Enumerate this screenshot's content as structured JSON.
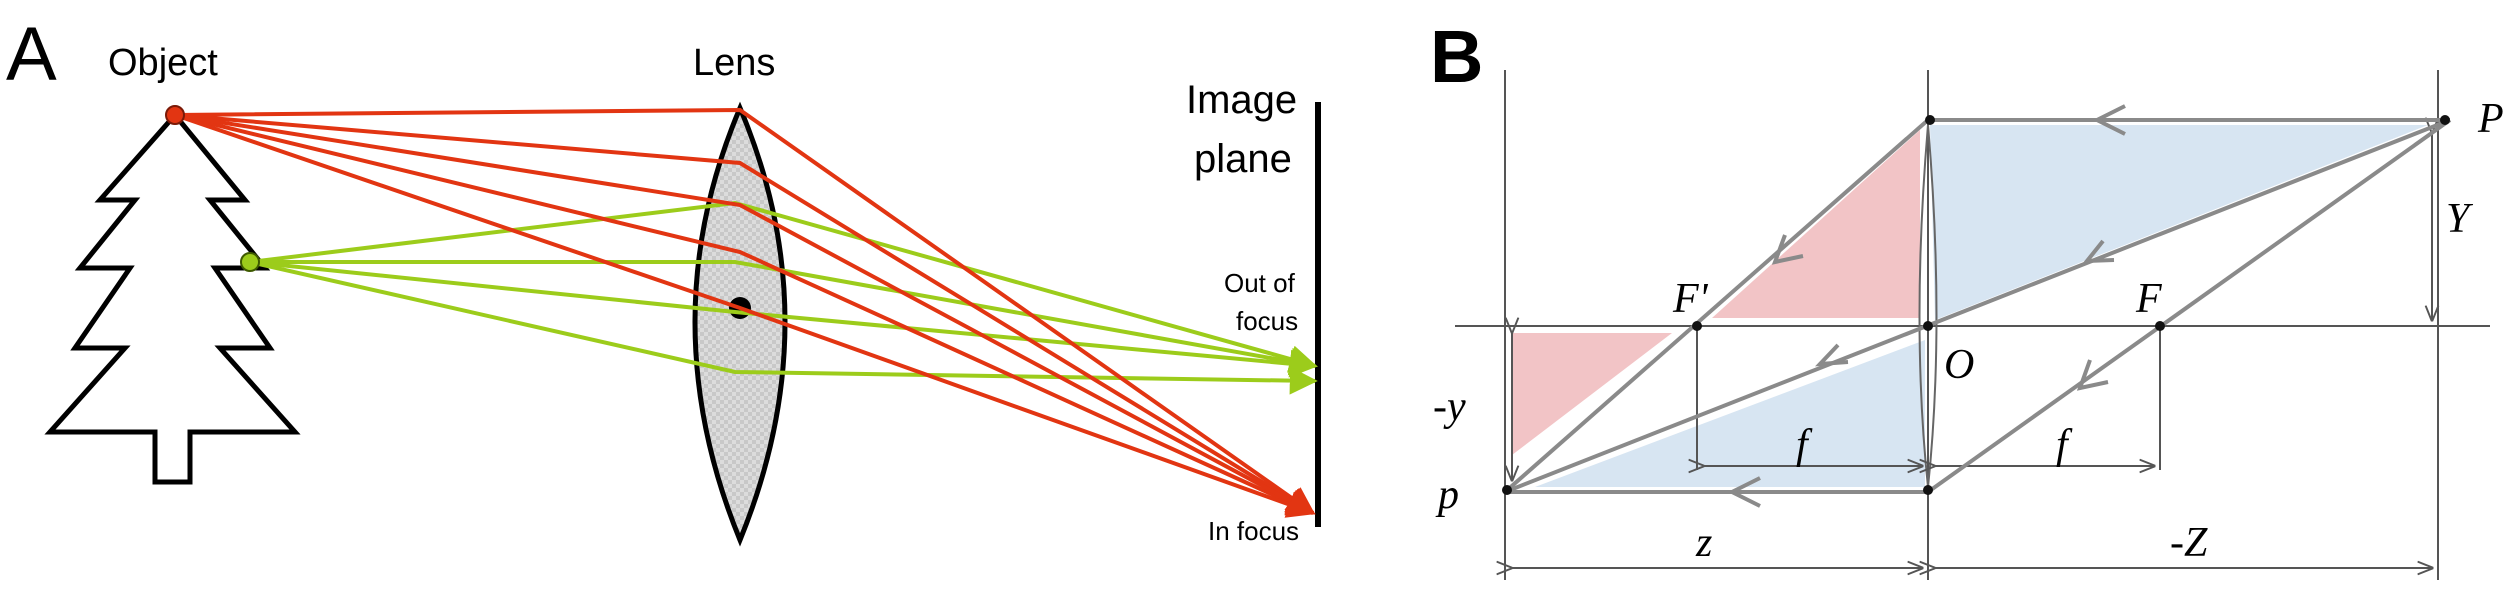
{
  "panel_a": {
    "panel_label": "A",
    "object_label": "Object",
    "lens_label": "Lens",
    "image_plane_label": [
      "Image",
      "plane"
    ],
    "out_of_focus_label": [
      "Out of",
      "focus"
    ],
    "in_focus_label": "In focus",
    "colors": {
      "in_focus_rays": "#e23512",
      "out_of_focus_rays": "#9ccc1b",
      "lens_fill": "#d6d6d6",
      "outline": "#000000"
    }
  },
  "panel_b": {
    "panel_label": "B",
    "labels": {
      "P": "P",
      "Y": "Y",
      "F_prime": "F'",
      "F": "F",
      "O": "O",
      "neg_y": "-y",
      "f_left": "f",
      "f_right": "f",
      "p": "p",
      "z": "z",
      "neg_Z": "-Z"
    },
    "colors": {
      "pink_region": "#f2c4c6",
      "blue_region": "#d7e5f2",
      "rays": "#8a8a8a",
      "lines": "#555555"
    }
  }
}
